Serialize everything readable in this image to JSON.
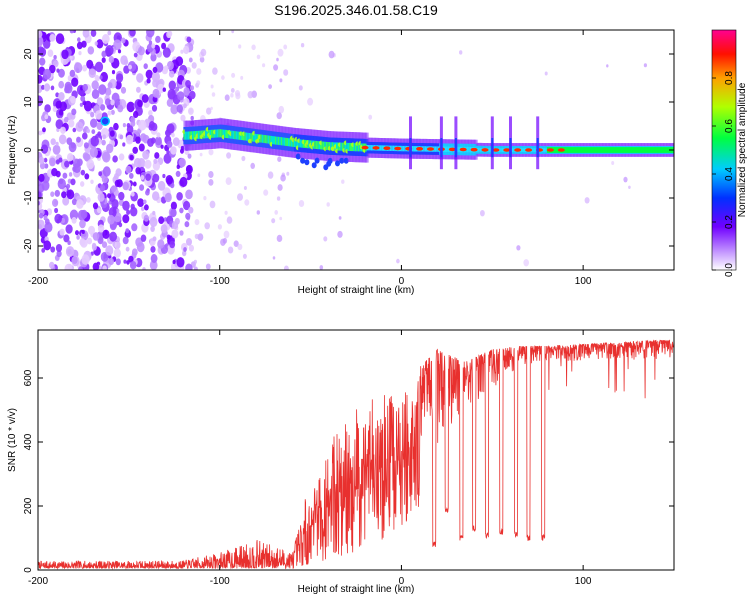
{
  "figure_title": "S196.2025.346.01.58.C19",
  "chart_data": [
    {
      "type": "heatmap",
      "name": "spectrogram",
      "xlabel": "Height of straight line (km)",
      "ylabel": "Frequency (Hz)",
      "xlim": [
        -200,
        150
      ],
      "ylim": [
        -25,
        25
      ],
      "xticks": [
        -200,
        -100,
        0,
        100
      ],
      "xtick_labels": [
        "-200",
        "-100",
        "0",
        "100"
      ],
      "yticks": [
        -20,
        -10,
        0,
        10,
        20
      ],
      "ytick_labels": [
        "-20",
        "-10",
        "0",
        "10",
        "20"
      ],
      "colorbar": {
        "label": "Normalized spectral amplitude",
        "range": [
          0,
          1
        ],
        "ticks": [
          0.0,
          0.2,
          0.4,
          0.6,
          0.8
        ],
        "tick_labels": [
          "0.0",
          "0.2",
          "0.4",
          "0.6",
          "0.8"
        ]
      },
      "ridge": [
        {
          "x": -118,
          "f": 3.0
        },
        {
          "x": -100,
          "f": 3.5
        },
        {
          "x": -80,
          "f": 2.5
        },
        {
          "x": -60,
          "f": 1.5
        },
        {
          "x": -40,
          "f": 0.8
        },
        {
          "x": -20,
          "f": 0.5
        },
        {
          "x": 0,
          "f": 0.3
        },
        {
          "x": 50,
          "f": 0.0
        },
        {
          "x": 150,
          "f": 0.0
        }
      ],
      "peak_markers_x": [
        5,
        22,
        30,
        50,
        60,
        75
      ],
      "noise_region_x": [
        -200,
        -120
      ]
    },
    {
      "type": "line",
      "name": "snr",
      "xlabel": "Height of straight line (km)",
      "ylabel": "SNR (10 * v/v)",
      "xlim": [
        -200,
        150
      ],
      "ylim": [
        0,
        750
      ],
      "xticks": [
        -200,
        -100,
        0,
        100
      ],
      "xtick_labels": [
        "-200",
        "-100",
        "0",
        "100"
      ],
      "yticks": [
        0,
        200,
        400,
        600
      ],
      "ytick_labels": [
        "0",
        "200",
        "400",
        "600"
      ],
      "color": "#e8302e",
      "envelope": [
        {
          "x": -200,
          "lo": 5,
          "hi": 28
        },
        {
          "x": -120,
          "lo": 5,
          "hi": 30
        },
        {
          "x": -100,
          "lo": 5,
          "hi": 55
        },
        {
          "x": -80,
          "lo": 5,
          "hi": 95
        },
        {
          "x": -60,
          "lo": 5,
          "hi": 60
        },
        {
          "x": -50,
          "lo": 20,
          "hi": 290
        },
        {
          "x": -35,
          "lo": 40,
          "hi": 450
        },
        {
          "x": -20,
          "lo": 60,
          "hi": 530
        },
        {
          "x": 0,
          "lo": 100,
          "hi": 580
        },
        {
          "x": 20,
          "lo": 200,
          "hi": 690
        },
        {
          "x": 35,
          "lo": 420,
          "hi": 650
        },
        {
          "x": 50,
          "lo": 470,
          "hi": 690
        },
        {
          "x": 65,
          "lo": 600,
          "hi": 700
        },
        {
          "x": 80,
          "lo": 620,
          "hi": 700
        },
        {
          "x": 150,
          "lo": 620,
          "hi": 720
        }
      ],
      "dropouts": [
        {
          "x": 18,
          "min": 70
        },
        {
          "x": 25,
          "min": 180
        },
        {
          "x": 33,
          "min": 90
        },
        {
          "x": 40,
          "min": 120
        },
        {
          "x": 47,
          "min": 100
        },
        {
          "x": 55,
          "min": 110
        },
        {
          "x": 63,
          "min": 100
        },
        {
          "x": 70,
          "min": 90
        },
        {
          "x": 78,
          "min": 90
        }
      ]
    }
  ]
}
